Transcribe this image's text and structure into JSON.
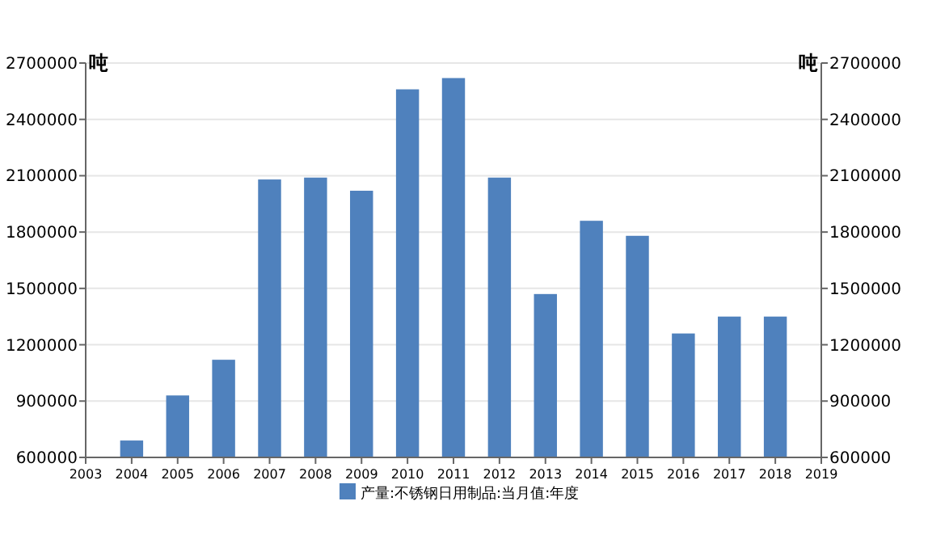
{
  "chart_data": {
    "type": "bar",
    "ylabel": "吨",
    "y2label": "吨",
    "x": [
      2004,
      2005,
      2006,
      2007,
      2008,
      2009,
      2010,
      2011,
      2012,
      2013,
      2014,
      2015,
      2016,
      2017,
      2018
    ],
    "series": [
      {
        "name": "产量:不锈钢日用制品:当月值:年度",
        "color": "#4f81bd",
        "values": [
          690000,
          930000,
          1120000,
          2080000,
          2090000,
          2020000,
          2560000,
          2620000,
          2090000,
          1470000,
          1860000,
          1780000,
          1260000,
          1350000,
          1350000
        ]
      }
    ],
    "xlim": [
      2003,
      2019
    ],
    "xticks": [
      2003,
      2004,
      2005,
      2006,
      2007,
      2008,
      2009,
      2010,
      2011,
      2012,
      2013,
      2014,
      2015,
      2016,
      2017,
      2018,
      2019
    ],
    "ylim": [
      600000,
      2700000
    ],
    "yticks": [
      600000,
      900000,
      1200000,
      1500000,
      1800000,
      2100000,
      2400000,
      2700000
    ],
    "y2lim": [
      600000,
      2700000
    ],
    "y2ticks": [
      600000,
      900000,
      1200000,
      1500000,
      1800000,
      2100000,
      2400000,
      2700000
    ],
    "grid": "y",
    "legend": "bottom"
  }
}
